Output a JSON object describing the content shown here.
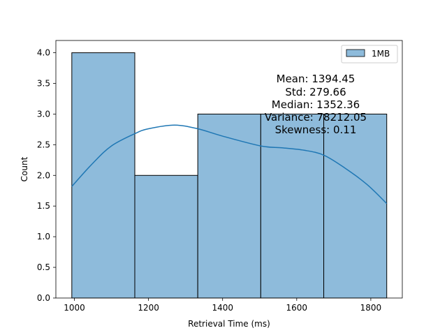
{
  "chart_data": {
    "type": "bar",
    "subtype": "histogram-with-kde",
    "title": "",
    "xlabel": "Retrieval Time (ms)",
    "ylabel": "Count",
    "xlim": [
      950,
      1885
    ],
    "ylim": [
      0,
      4.2
    ],
    "xticks": [
      1000,
      1200,
      1400,
      1600,
      1800
    ],
    "yticks": [
      0.0,
      0.5,
      1.0,
      1.5,
      2.0,
      2.5,
      3.0,
      3.5,
      4.0
    ],
    "xtick_labels": [
      "1000",
      "1200",
      "1400",
      "1600",
      "1800"
    ],
    "ytick_labels": [
      "0.0",
      "0.5",
      "1.0",
      "1.5",
      "2.0",
      "2.5",
      "3.0",
      "3.5",
      "4.0"
    ],
    "bins": [
      {
        "start": 993,
        "end": 1163,
        "count": 4
      },
      {
        "start": 1163,
        "end": 1333,
        "count": 2
      },
      {
        "start": 1333,
        "end": 1503,
        "count": 3
      },
      {
        "start": 1503,
        "end": 1673,
        "count": 3
      },
      {
        "start": 1673,
        "end": 1843,
        "count": 3
      }
    ],
    "kde": {
      "x": [
        993,
        1050,
        1100,
        1163,
        1200,
        1270,
        1333,
        1400,
        1503,
        1560,
        1620,
        1673,
        1730,
        1790,
        1843
      ],
      "y": [
        1.82,
        2.2,
        2.48,
        2.68,
        2.76,
        2.82,
        2.76,
        2.64,
        2.48,
        2.45,
        2.41,
        2.33,
        2.12,
        1.85,
        1.54
      ]
    },
    "legend": {
      "placement": "top-right",
      "entries": [
        "1MB"
      ]
    },
    "grid": false,
    "colors": {
      "bar_fill": "#8ebbdb",
      "bar_edge": "#000000",
      "kde_line": "#1f77b4"
    },
    "stats": [
      "Mean: 1394.45",
      "Std: 279.66",
      "Median: 1352.36",
      "Variance: 78212.05",
      "Skewness: 0.11"
    ]
  }
}
